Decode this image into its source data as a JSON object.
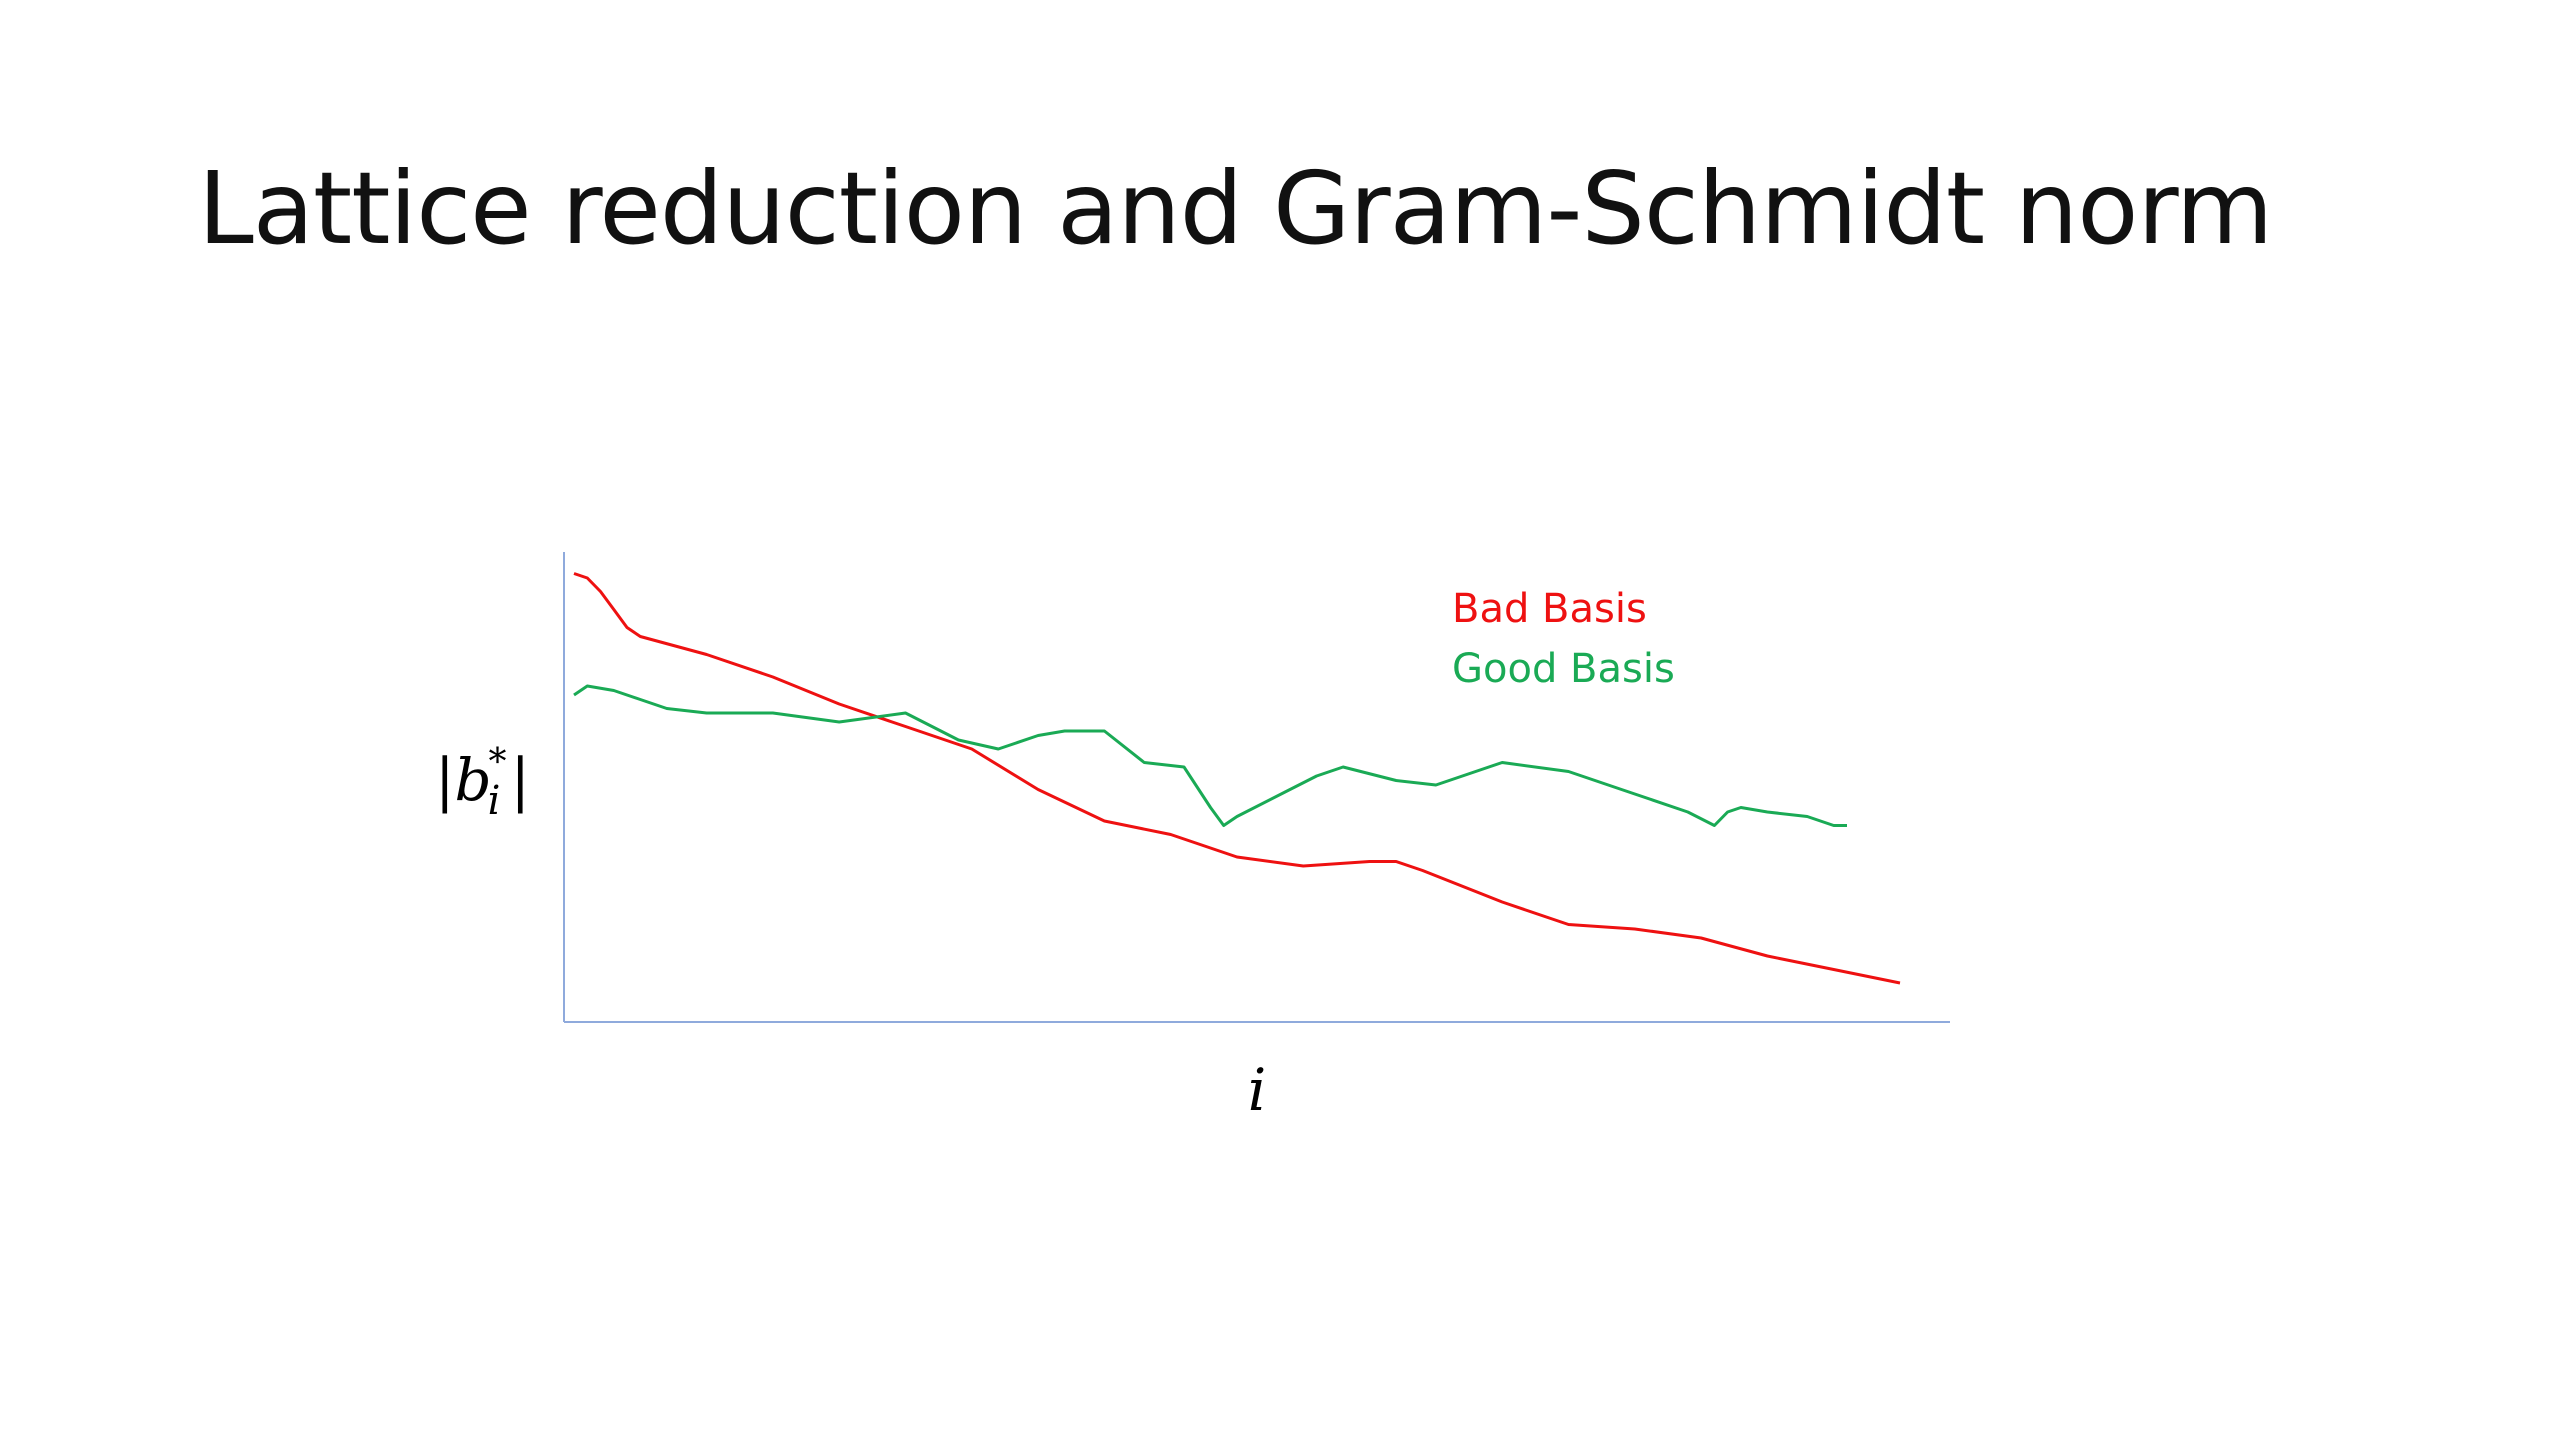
{
  "slide": {
    "title": "Lattice reduction and Gram-Schmidt norm"
  },
  "chart_data": {
    "type": "line",
    "title": "",
    "xlabel": "i",
    "ylabel": "|b_i^*|",
    "ylabel_parts": {
      "open": "|b",
      "sub": "i",
      "sup": "*",
      "close": "|"
    },
    "xlim": [
      0,
      100
    ],
    "ylim": [
      0,
      100
    ],
    "grid": false,
    "ticks_shown": false,
    "legend": {
      "placement": "top-right"
    },
    "series": [
      {
        "name": "Bad Basis",
        "color": "#ee1111",
        "x": [
          0,
          1,
          2,
          3,
          4,
          5,
          10,
          15,
          20,
          25,
          30,
          35,
          40,
          45,
          50,
          55,
          60,
          62,
          64,
          70,
          75,
          80,
          85,
          90,
          95,
          100
        ],
        "y": [
          97,
          96,
          93,
          89,
          85,
          83,
          79,
          74,
          68,
          63,
          58,
          49,
          42,
          39,
          34,
          32,
          33,
          33,
          31,
          24,
          19,
          18,
          16,
          12,
          9,
          6
        ]
      },
      {
        "name": "Good Basis",
        "color": "#1aaa55",
        "x": [
          0,
          1,
          3,
          5,
          7,
          10,
          15,
          20,
          25,
          27,
          29,
          32,
          35,
          37,
          40,
          43,
          46,
          48,
          49,
          50,
          54,
          56,
          58,
          62,
          65,
          70,
          75,
          79,
          84,
          86,
          87,
          88,
          90,
          93,
          95,
          96
        ],
        "y": [
          70,
          72,
          71,
          69,
          67,
          66,
          66,
          64,
          66,
          63,
          60,
          58,
          61,
          62,
          62,
          55,
          54,
          45,
          41,
          43,
          49,
          52,
          54,
          51,
          50,
          55,
          53,
          49,
          44,
          41,
          44,
          45,
          44,
          43,
          41,
          41
        ]
      }
    ]
  }
}
